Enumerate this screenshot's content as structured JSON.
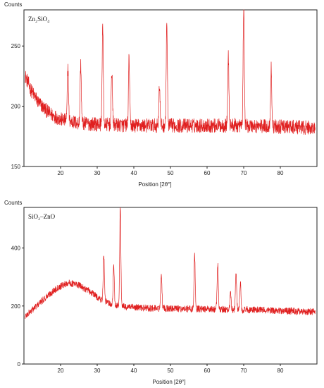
{
  "chart_data": [
    {
      "type": "line",
      "panel_label": "Zn₂SiO₄",
      "ylabel": "Counts",
      "xlabel": "Position [2θ°]",
      "xlim": [
        10,
        90
      ],
      "ylim": [
        150,
        280
      ],
      "x_ticks": [
        20,
        30,
        40,
        50,
        60,
        70,
        80
      ],
      "y_ticks": [
        150,
        200,
        250
      ],
      "grid": false,
      "series": [
        {
          "color": "#e02020",
          "baseline": [
            [
              10,
              228
            ],
            [
              12,
              213
            ],
            [
              14,
              203
            ],
            [
              17,
              194
            ],
            [
              20,
              189
            ],
            [
              25,
              186
            ],
            [
              30,
              185
            ],
            [
              40,
              184
            ],
            [
              50,
              184
            ],
            [
              60,
              184
            ],
            [
              70,
              184
            ],
            [
              80,
              183
            ],
            [
              89.5,
              182
            ]
          ],
          "noise": 6,
          "peaks": [
            {
              "x": 22.0,
              "y": 233
            },
            {
              "x": 25.5,
              "y": 235
            },
            {
              "x": 31.5,
              "y": 267
            },
            {
              "x": 34.0,
              "y": 230
            },
            {
              "x": 38.7,
              "y": 240
            },
            {
              "x": 47.0,
              "y": 218
            },
            {
              "x": 49.0,
              "y": 270
            },
            {
              "x": 65.8,
              "y": 241
            },
            {
              "x": 70.0,
              "y": 283
            },
            {
              "x": 77.5,
              "y": 232
            }
          ]
        }
      ]
    },
    {
      "type": "line",
      "panel_label": "SiO₂–ZnO",
      "ylabel": "Counts",
      "xlabel": "Position [2θ°]",
      "xlim": [
        10,
        90
      ],
      "ylim": [
        0,
        540
      ],
      "x_ticks": [
        20,
        30,
        40,
        50,
        60,
        70,
        80
      ],
      "y_ticks": [
        0,
        200,
        400
      ],
      "grid": false,
      "series": [
        {
          "color": "#e02020",
          "baseline": [
            [
              10,
              160
            ],
            [
              13,
              195
            ],
            [
              16,
              230
            ],
            [
              19,
              262
            ],
            [
              22,
              280
            ],
            [
              25,
              272
            ],
            [
              28,
              250
            ],
            [
              31,
              222
            ],
            [
              34,
              205
            ],
            [
              38,
              196
            ],
            [
              45,
              192
            ],
            [
              55,
              190
            ],
            [
              65,
              188
            ],
            [
              75,
              186
            ],
            [
              89.5,
              180
            ]
          ],
          "noise": 12,
          "peaks": [
            {
              "x": 31.8,
              "y": 380
            },
            {
              "x": 34.5,
              "y": 335
            },
            {
              "x": 36.3,
              "y": 540
            },
            {
              "x": 47.5,
              "y": 315
            },
            {
              "x": 56.6,
              "y": 375
            },
            {
              "x": 62.9,
              "y": 345
            },
            {
              "x": 66.4,
              "y": 245
            },
            {
              "x": 67.9,
              "y": 315
            },
            {
              "x": 69.1,
              "y": 280
            }
          ]
        }
      ]
    }
  ]
}
